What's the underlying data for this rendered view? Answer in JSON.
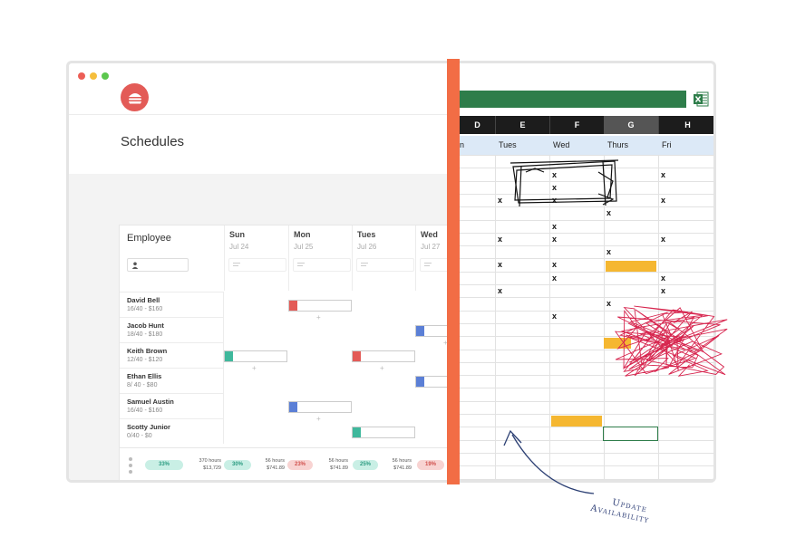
{
  "app": {
    "window_dots": [
      "#ec5e56",
      "#f5be3c",
      "#5cc74e"
    ],
    "logo_color": "#e35b57",
    "logo_icon": "burger-icon",
    "title": "Schedules"
  },
  "schedule": {
    "employee_header": "Employee",
    "search_icon": "person-icon",
    "days": [
      {
        "name": "Sun",
        "date": "Jul 24"
      },
      {
        "name": "Mon",
        "date": "Jul 25"
      },
      {
        "name": "Tues",
        "date": "Jul 26"
      },
      {
        "name": "Wed",
        "date": "Jul 27"
      }
    ],
    "employees": [
      {
        "name": "David Bell",
        "hours": "16/40 - $160"
      },
      {
        "name": "Jacob Hunt",
        "hours": "18/40 - $180"
      },
      {
        "name": "Keith Brown",
        "hours": "12/40 - $120"
      },
      {
        "name": "Ethan Ellis",
        "hours": "8/ 40 - $80"
      },
      {
        "name": "Samuel Austin",
        "hours": "16/40 - $160"
      },
      {
        "name": "Scotty Junior",
        "hours": "0/40 - $0"
      }
    ],
    "shift_colors": {
      "red": "#e35b57",
      "blue": "#5b7fd6",
      "teal": "#3fb89c"
    },
    "footer": {
      "pills": [
        "33%",
        "30%",
        "23%",
        "25%",
        "19%"
      ],
      "stats": [
        {
          "hours": "370 hours",
          "amount": "$13,729"
        },
        {
          "hours": "56 hours",
          "amount": "$741.89"
        },
        {
          "hours": "56 hours",
          "amount": "$741.89"
        },
        {
          "hours": "56 hours",
          "amount": "$741.89"
        }
      ]
    }
  },
  "sheet": {
    "columns": [
      "D",
      "E",
      "F",
      "G",
      "H"
    ],
    "selected_column": "G",
    "day_headers": [
      "n",
      "Tues",
      "Wed",
      "Thurs",
      "Fri"
    ],
    "mark": "x",
    "excel_icon": "excel-icon",
    "accent": "#2e7d4a",
    "highlight": "#f5b731"
  },
  "annotation": {
    "line1": "Update",
    "line2": "Availability"
  }
}
